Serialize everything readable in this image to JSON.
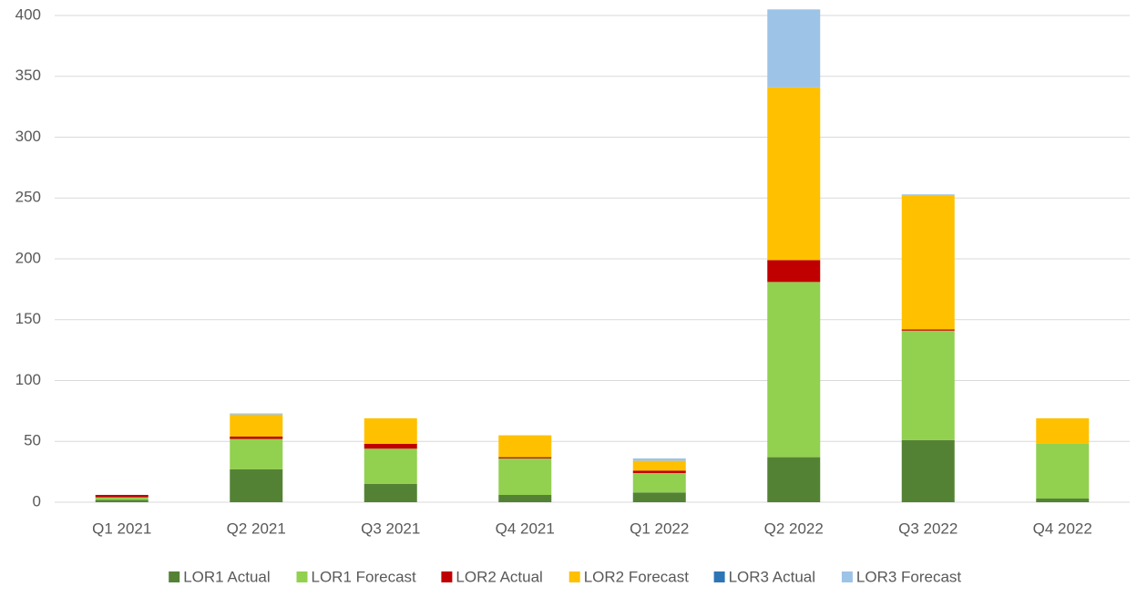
{
  "chart_data": {
    "type": "stacked_bar",
    "categories": [
      "Q1 2021",
      "Q2 2021",
      "Q3 2021",
      "Q4 2021",
      "Q1 2022",
      "Q2 2022",
      "Q3 2022",
      "Q4 2022"
    ],
    "series": [
      {
        "name": "LOR1 Actual",
        "color": "#548235",
        "values": [
          2,
          27,
          15,
          6,
          8,
          37,
          51,
          3
        ]
      },
      {
        "name": "LOR1 Forecast",
        "color": "#92d050",
        "values": [
          2,
          25,
          29,
          30,
          16,
          144,
          90,
          45
        ]
      },
      {
        "name": "LOR2 Actual",
        "color": "#c00000",
        "values": [
          2,
          2,
          4,
          1,
          2,
          18,
          1,
          0
        ]
      },
      {
        "name": "LOR2 Forecast",
        "color": "#ffc000",
        "values": [
          0,
          18,
          21,
          18,
          8,
          142,
          110,
          21
        ]
      },
      {
        "name": "LOR3 Actual",
        "color": "#2e75b6",
        "values": [
          0,
          0,
          0,
          0,
          0,
          0,
          0,
          0
        ]
      },
      {
        "name": "LOR3 Forecast",
        "color": "#9dc3e6",
        "values": [
          0,
          1,
          0,
          0,
          2,
          64,
          1,
          0
        ]
      }
    ],
    "ylim": [
      0,
      400
    ],
    "yticks": [
      0,
      50,
      100,
      150,
      200,
      250,
      300,
      350,
      400
    ],
    "grid": true,
    "legend": "bottom"
  }
}
